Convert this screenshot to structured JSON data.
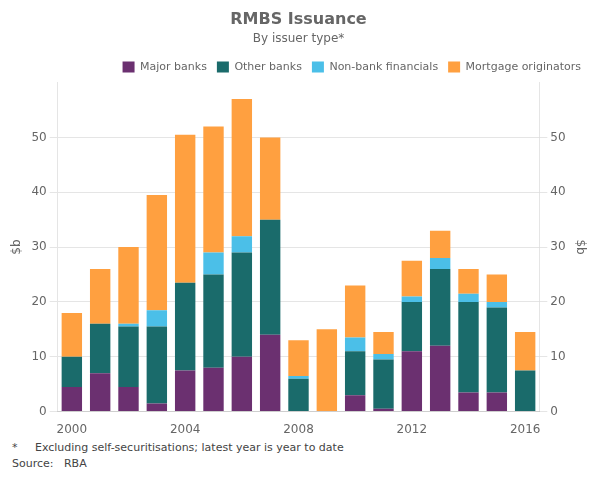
{
  "chart_data": {
    "type": "bar",
    "stacked": true,
    "title": "RMBS Issuance",
    "subtitle": "By issuer type*",
    "categories": [
      "2000",
      null,
      null,
      null,
      "2004",
      null,
      null,
      null,
      "2008",
      null,
      null,
      null,
      "2012",
      null,
      null,
      null,
      "2016"
    ],
    "series": [
      {
        "name": "Major banks",
        "color": "#6B3070",
        "values": [
          4.5,
          7.0,
          4.5,
          1.5,
          7.5,
          8.0,
          10.0,
          14.0,
          0.0,
          0.0,
          3.0,
          0.5,
          11.0,
          12.0,
          3.5,
          3.5,
          0.0
        ]
      },
      {
        "name": "Other banks",
        "color": "#1A6B6B",
        "values": [
          5.5,
          9.0,
          11.0,
          14.0,
          16.0,
          17.0,
          19.0,
          21.0,
          6.0,
          0.0,
          8.0,
          9.0,
          9.0,
          14.0,
          16.5,
          15.5,
          7.5
        ]
      },
      {
        "name": "Non-bank financials",
        "color": "#4BBFE8",
        "values": [
          0.0,
          0.0,
          0.5,
          3.0,
          0.0,
          4.0,
          3.0,
          0.0,
          0.5,
          0.0,
          2.5,
          1.0,
          1.0,
          2.0,
          1.5,
          1.0,
          0.0
        ]
      },
      {
        "name": "Mortgage originators",
        "color": "#FFA040",
        "values": [
          8.0,
          10.0,
          14.0,
          21.0,
          27.0,
          23.0,
          25.0,
          15.0,
          6.5,
          15.0,
          9.5,
          4.0,
          6.5,
          5.0,
          4.5,
          5.0,
          7.0
        ]
      }
    ],
    "ylim": [
      0,
      60
    ],
    "yticks": [
      0,
      10,
      20,
      30,
      40,
      50
    ],
    "ylabel": "$b",
    "y2lim": [
      0,
      60
    ],
    "y2ticks": [
      0,
      10,
      20,
      30,
      40,
      50
    ],
    "y2label": "$b",
    "grid": true,
    "legend": "upper right",
    "footnote": "*     Excluding self-securitisations; latest year is year to date",
    "source": "Source:   RBA"
  }
}
